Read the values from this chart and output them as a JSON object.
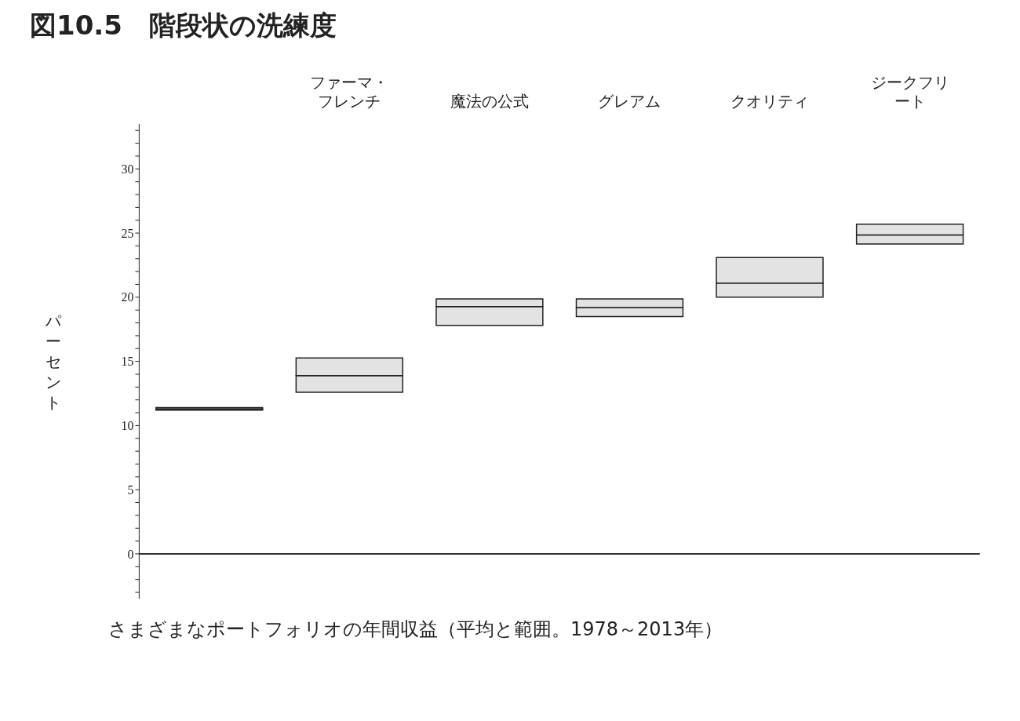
{
  "chart_data": {
    "type": "bar",
    "title": "図10.5　階段状の洗練度",
    "ylabel": "パーセント",
    "categories": [
      null,
      "ファーマ・フレンチ",
      "魔法の公式",
      "グレアム",
      "クオリティ",
      "ジークフリート"
    ],
    "stacked": true,
    "series": [
      {
        "color": "#e3e3e3",
        "base": [
          11.2,
          12.6,
          17.8,
          18.5,
          20.0,
          24.15
        ],
        "values": [
          0.1,
          1.3,
          1.47,
          0.7,
          1.1,
          0.7
        ]
      },
      {
        "color": "#e3e3e3",
        "values": [
          0.1,
          1.37,
          0.6,
          0.67,
          2.0,
          0.85
        ]
      }
    ],
    "ylim": [
      -3.5,
      33.5
    ],
    "yticks": [
      {
        "value": -3,
        "label": null
      },
      {
        "value": -2,
        "label": null
      },
      {
        "value": -1,
        "label": null
      },
      0,
      {
        "value": 1,
        "label": null
      },
      {
        "value": 2,
        "label": null
      },
      {
        "value": 3,
        "label": null
      },
      {
        "value": 4,
        "label": null
      },
      5,
      {
        "value": 6,
        "label": null
      },
      {
        "value": 7,
        "label": null
      },
      {
        "value": 8,
        "label": null
      },
      {
        "value": 9,
        "label": null
      },
      10,
      {
        "value": 11,
        "label": null
      },
      {
        "value": 12,
        "label": null
      },
      {
        "value": 13,
        "label": null
      },
      {
        "value": 14,
        "label": null
      },
      15,
      {
        "value": 16,
        "label": null
      },
      {
        "value": 17,
        "label": null
      },
      {
        "value": 18,
        "label": null
      },
      {
        "value": 19,
        "label": null
      },
      20,
      {
        "value": 21,
        "label": null
      },
      {
        "value": 22,
        "label": null
      },
      {
        "value": 23,
        "label": null
      },
      {
        "value": 24,
        "label": null
      },
      25,
      {
        "value": 26,
        "label": null
      },
      {
        "value": 27,
        "label": null
      },
      {
        "value": 28,
        "label": null
      },
      {
        "value": 29,
        "label": null
      },
      30,
      {
        "value": 31,
        "label": null
      },
      {
        "value": 32,
        "label": null
      },
      {
        "value": 33,
        "label": null
      }
    ],
    "ref_lines": [
      {
        "axis": "y",
        "value": 0,
        "color": "#333333"
      }
    ],
    "annotations": [
      "さまざまなポートフォリオの年間収益（平均と範囲。1978～2013年）"
    ]
  }
}
